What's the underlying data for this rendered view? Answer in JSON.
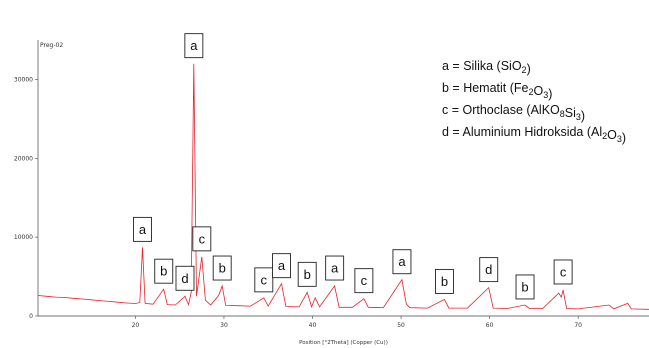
{
  "chart_data": {
    "type": "line",
    "sample_label": "Preg-02",
    "xlabel": "Position [°2Theta] (Copper (Cu))",
    "ylabel": "",
    "xlim": [
      9,
      78
    ],
    "ylim": [
      0,
      35000
    ],
    "x_ticks": [
      20,
      30,
      40,
      50,
      60,
      70
    ],
    "y_ticks": [
      0,
      10000,
      20000,
      30000
    ],
    "line_color": "#e8202a",
    "series": [
      {
        "points": [
          [
            9,
            2600
          ],
          [
            10,
            2500
          ],
          [
            11,
            2400
          ],
          [
            12,
            2350
          ],
          [
            13,
            2250
          ],
          [
            14,
            2150
          ],
          [
            15,
            2050
          ],
          [
            16,
            1950
          ],
          [
            17,
            1850
          ],
          [
            18,
            1750
          ],
          [
            19,
            1650
          ],
          [
            20,
            1580
          ],
          [
            20.5,
            1700
          ],
          [
            20.8,
            8700
          ],
          [
            21.1,
            1600
          ],
          [
            22,
            1500
          ],
          [
            23.2,
            3400
          ],
          [
            23.6,
            1450
          ],
          [
            24.5,
            1400
          ],
          [
            25.6,
            2500
          ],
          [
            26.0,
            1450
          ],
          [
            26.3,
            3000
          ],
          [
            26.6,
            32000
          ],
          [
            26.9,
            2500
          ],
          [
            27.5,
            7500
          ],
          [
            27.9,
            2000
          ],
          [
            28.5,
            1400
          ],
          [
            29.4,
            2600
          ],
          [
            29.8,
            3800
          ],
          [
            30.2,
            1350
          ],
          [
            31.5,
            1300
          ],
          [
            33,
            1250
          ],
          [
            34.5,
            2300
          ],
          [
            35,
            1250
          ],
          [
            36.5,
            4100
          ],
          [
            37,
            1200
          ],
          [
            38.5,
            1150
          ],
          [
            39.4,
            3000
          ],
          [
            39.9,
            1150
          ],
          [
            40.3,
            2300
          ],
          [
            40.8,
            1150
          ],
          [
            42.5,
            3800
          ],
          [
            43,
            1100
          ],
          [
            44.5,
            1100
          ],
          [
            45.8,
            2200
          ],
          [
            46.3,
            1100
          ],
          [
            48,
            1050
          ],
          [
            50.1,
            4600
          ],
          [
            50.6,
            1500
          ],
          [
            51,
            1050
          ],
          [
            53,
            1000
          ],
          [
            54.9,
            2100
          ],
          [
            55.4,
            1000
          ],
          [
            57.5,
            1000
          ],
          [
            59.9,
            3600
          ],
          [
            60.4,
            1000
          ],
          [
            62,
            950
          ],
          [
            64,
            1400
          ],
          [
            64.5,
            950
          ],
          [
            66,
            950
          ],
          [
            67.8,
            2900
          ],
          [
            68.1,
            2400
          ],
          [
            68.3,
            3300
          ],
          [
            68.7,
            950
          ],
          [
            70,
            900
          ],
          [
            73.5,
            1400
          ],
          [
            74,
            900
          ],
          [
            75.6,
            1600
          ],
          [
            76,
            900
          ],
          [
            78,
            850
          ]
        ]
      }
    ],
    "peak_labels": [
      {
        "text": "a",
        "x": 26.6,
        "y": 32000
      },
      {
        "text": "a",
        "x": 20.8,
        "y": 8700
      },
      {
        "text": "b",
        "x": 23.2,
        "y": 3400
      },
      {
        "text": "d",
        "x": 25.6,
        "y": 2500
      },
      {
        "text": "c",
        "x": 27.5,
        "y": 7500
      },
      {
        "text": "b",
        "x": 29.8,
        "y": 3800
      },
      {
        "text": "c",
        "x": 34.5,
        "y": 2300
      },
      {
        "text": "a",
        "x": 36.5,
        "y": 4100
      },
      {
        "text": "b",
        "x": 39.4,
        "y": 3000
      },
      {
        "text": "a",
        "x": 42.5,
        "y": 3800
      },
      {
        "text": "c",
        "x": 45.8,
        "y": 2200
      },
      {
        "text": "a",
        "x": 50.1,
        "y": 4600
      },
      {
        "text": "b",
        "x": 54.9,
        "y": 2100
      },
      {
        "text": "d",
        "x": 59.9,
        "y": 3600
      },
      {
        "text": "b",
        "x": 64.0,
        "y": 1400
      },
      {
        "text": "c",
        "x": 68.3,
        "y": 3300
      }
    ],
    "legend": {
      "placement": "top-right",
      "entries": [
        {
          "prefix": "a = Silika (SiO",
          "sub": "2",
          "suffix": ")"
        },
        {
          "prefix": "b = Hematit (Fe",
          "sub": "2",
          "mid": "O",
          "sub2": "3",
          "suffix": ")"
        },
        {
          "prefix": "c = Orthoclase (AlKO",
          "sub": "8",
          "mid": "Si",
          "sub2": "3",
          "suffix": ")"
        },
        {
          "prefix": "d = Aluminium Hidroksida (Al",
          "sub": "2",
          "mid": "O",
          "sub2": "3",
          "suffix": ")"
        }
      ]
    }
  }
}
